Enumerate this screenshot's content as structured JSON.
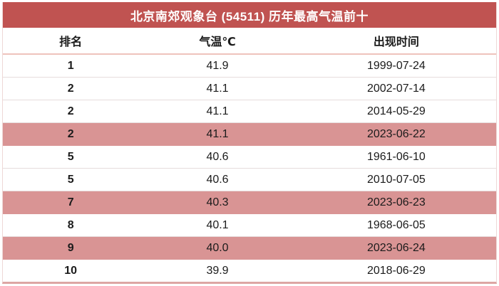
{
  "title": "北京南郊观象台 (54511) 历年最高气温前十",
  "columns": {
    "rank": "排名",
    "temp": "气温℃",
    "date": "出现时间"
  },
  "rows": [
    {
      "rank": "1",
      "temp": "41.9",
      "date": "1999-07-24",
      "highlight": false
    },
    {
      "rank": "2",
      "temp": "41.1",
      "date": "2002-07-14",
      "highlight": false
    },
    {
      "rank": "2",
      "temp": "41.1",
      "date": "2014-05-29",
      "highlight": false
    },
    {
      "rank": "2",
      "temp": "41.1",
      "date": "2023-06-22",
      "highlight": true
    },
    {
      "rank": "5",
      "temp": "40.6",
      "date": "1961-06-10",
      "highlight": false
    },
    {
      "rank": "5",
      "temp": "40.6",
      "date": "2010-07-05",
      "highlight": false
    },
    {
      "rank": "7",
      "temp": "40.3",
      "date": "2023-06-23",
      "highlight": true
    },
    {
      "rank": "8",
      "temp": "40.1",
      "date": "1968-06-05",
      "highlight": false
    },
    {
      "rank": "9",
      "temp": "40.0",
      "date": "2023-06-24",
      "highlight": true
    },
    {
      "rank": "10",
      "temp": "39.9",
      "date": "2018-06-29",
      "highlight": false
    }
  ],
  "colors": {
    "title_bg": "#c05351",
    "title_text": "#ffffff",
    "highlight_row_bg": "#d99494",
    "row_separator": "#e6dcdc",
    "header_separator": "#eec3bc",
    "outer_border": "#dda6a4",
    "outer_border_light": "#eed8d6",
    "body_text": "#1b1b1b"
  },
  "chart_data": {
    "type": "table",
    "title": "北京南郊观象台 (54511) 历年最高气温前十",
    "columns": [
      "排名",
      "气温℃",
      "出现时间"
    ],
    "rows": [
      [
        "1",
        "41.9",
        "1999-07-24"
      ],
      [
        "2",
        "41.1",
        "2002-07-14"
      ],
      [
        "2",
        "41.1",
        "2014-05-29"
      ],
      [
        "2",
        "41.1",
        "2023-06-22"
      ],
      [
        "5",
        "40.6",
        "1961-06-10"
      ],
      [
        "5",
        "40.6",
        "2010-07-05"
      ],
      [
        "7",
        "40.3",
        "2023-06-23"
      ],
      [
        "8",
        "40.1",
        "1968-06-05"
      ],
      [
        "9",
        "40.0",
        "2023-06-24"
      ],
      [
        "10",
        "39.9",
        "2018-06-29"
      ]
    ],
    "highlighted_row_indices": [
      3,
      6,
      8
    ]
  }
}
